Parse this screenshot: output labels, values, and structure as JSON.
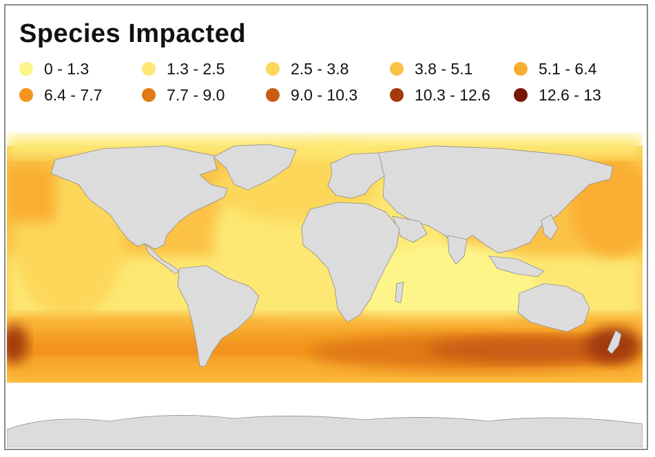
{
  "title": "Species Impacted",
  "legend": [
    {
      "label": "0 - 1.3",
      "color": "#fdf58a"
    },
    {
      "label": "1.3 - 2.5",
      "color": "#fde873"
    },
    {
      "label": "2.5 - 3.8",
      "color": "#fcd75a"
    },
    {
      "label": "3.8 - 5.1",
      "color": "#fbc246"
    },
    {
      "label": "5.1 - 6.4",
      "color": "#f9ad32"
    },
    {
      "label": "6.4 - 7.7",
      "color": "#f2941f"
    },
    {
      "label": "7.7 - 9.0",
      "color": "#e07916"
    },
    {
      "label": "9.0 - 10.3",
      "color": "#c85c12"
    },
    {
      "label": "10.3 - 12.6",
      "color": "#a33a0c"
    },
    {
      "label": "12.6 - 13",
      "color": "#7a1607"
    }
  ],
  "colors": {
    "land": "#dcdcdc",
    "border": "#8c8c8c",
    "ice": "#ffffff"
  },
  "map": {
    "projection": "equirectangular",
    "content": "global ocean map shaded by number of species impacted; land masses in grey"
  }
}
